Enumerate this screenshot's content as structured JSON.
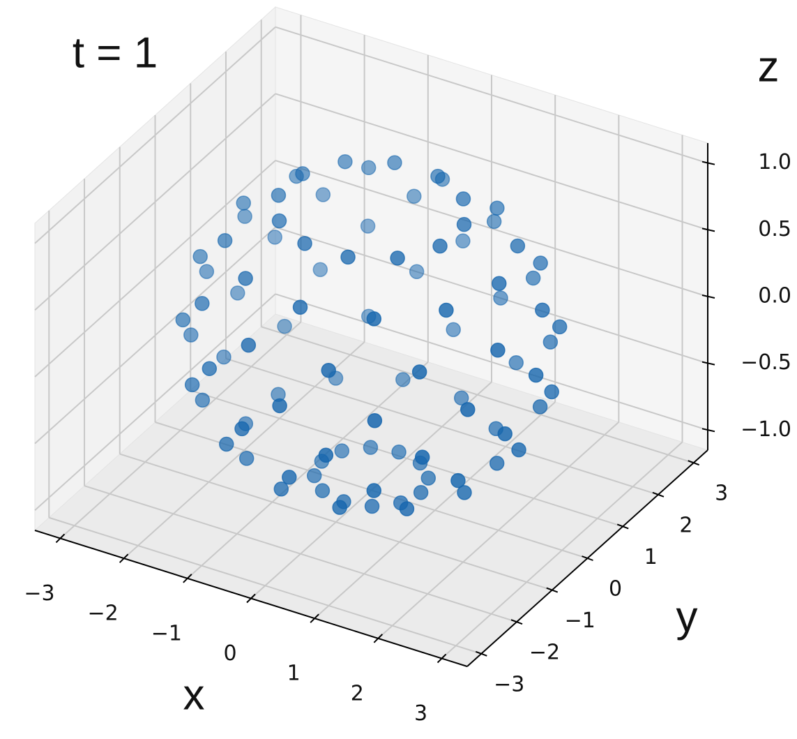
{
  "chart_data": {
    "type": "scatter3d",
    "title": "t = 1",
    "xlabel": "x",
    "ylabel": "y",
    "zlabel": "z",
    "color": "#1565ad",
    "depthshade": true,
    "grid": true,
    "xlim": [
      -3.4,
      3.4
    ],
    "ylim": [
      -3.4,
      3.4
    ],
    "zlim": [
      -1.15,
      1.15
    ],
    "xticks": [
      {
        "value": -3,
        "label": "−3"
      },
      {
        "value": -2,
        "label": "−2"
      },
      {
        "value": -1,
        "label": "−1"
      },
      0,
      1,
      2,
      3
    ],
    "yticks": [
      {
        "value": -3,
        "label": "−3"
      },
      {
        "value": -2,
        "label": "−2"
      },
      {
        "value": -1,
        "label": "−1"
      },
      0,
      1,
      2,
      3
    ],
    "zticks": [
      {
        "value": -1,
        "label": "−1.0"
      },
      {
        "value": -0.5,
        "label": "−0.5"
      },
      {
        "value": 0,
        "label": "0.0"
      },
      0.5,
      {
        "value": 1,
        "label": "1.0"
      }
    ],
    "x": [
      0.78,
      0.68,
      0.39,
      0,
      -0.39,
      -0.68,
      -0.78,
      -0.68,
      -0.39,
      0,
      0.39,
      0.68,
      1.72,
      1.26,
      0.46,
      -0.46,
      -1.26,
      -1.72,
      -1.72,
      -1.26,
      -0.46,
      0.46,
      1.26,
      1.72,
      2.32,
      2.01,
      1.16,
      0,
      -1.16,
      -2.01,
      -2.32,
      -2.01,
      -1.16,
      0,
      1.16,
      2.01,
      2.47,
      1.81,
      0.66,
      -0.66,
      -1.81,
      -2.47,
      -2.47,
      -1.81,
      -0.66,
      0.66,
      1.81,
      2.47,
      2.59,
      2.24,
      1.3,
      0,
      -1.3,
      -2.24,
      -2.59,
      -2.24,
      -1.3,
      0,
      1.3,
      2.24,
      2.34,
      1.71,
      0.63,
      -0.63,
      -1.71,
      -2.34,
      -2.34,
      -1.71,
      -0.63,
      0.63,
      1.71,
      2.34,
      2.01,
      1.74,
      1.01,
      0,
      -1.01,
      -1.74,
      -2.01,
      -1.74,
      -1.01,
      0,
      1.01,
      1.74,
      1.27,
      0.93,
      0.34,
      -0.34,
      -0.93,
      -1.27,
      -1.27,
      -0.93,
      -0.34,
      0.34,
      0.93,
      1.27
    ],
    "y": [
      0,
      0.39,
      0.68,
      0.78,
      0.68,
      0.39,
      0,
      -0.39,
      -0.68,
      -0.78,
      -0.68,
      -0.39,
      0.46,
      1.26,
      1.72,
      1.72,
      1.26,
      0.46,
      -0.46,
      -1.26,
      -1.72,
      -1.72,
      -1.26,
      -0.46,
      0,
      1.16,
      2.01,
      2.32,
      2.01,
      1.16,
      0,
      -1.16,
      -2.01,
      -2.32,
      -2.01,
      -1.16,
      0.66,
      1.81,
      2.47,
      2.47,
      1.81,
      0.66,
      -0.66,
      -1.81,
      -2.47,
      -2.47,
      -1.81,
      -0.66,
      0,
      1.3,
      2.24,
      2.59,
      2.24,
      1.3,
      0,
      -1.3,
      -2.24,
      -2.59,
      -2.24,
      -1.3,
      0.63,
      1.71,
      2.34,
      2.34,
      1.71,
      0.63,
      -0.63,
      -1.71,
      -2.34,
      -2.34,
      -1.71,
      -0.63,
      0,
      1.01,
      1.74,
      2.01,
      1.74,
      1.01,
      0,
      -1.01,
      -1.74,
      -2.01,
      -1.74,
      -1.01,
      0.34,
      0.93,
      1.27,
      1.27,
      0.93,
      0.34,
      -0.34,
      -0.93,
      -1.27,
      -1.27,
      -0.93,
      -0.34
    ],
    "z": [
      -1.05,
      -1.05,
      -1.05,
      -1.05,
      -1.05,
      -1.05,
      -1.05,
      -1.05,
      -1.05,
      -1.05,
      -1.05,
      -1.05,
      -0.8,
      -0.8,
      -0.8,
      -0.8,
      -0.8,
      -0.8,
      -0.8,
      -0.8,
      -0.8,
      -0.8,
      -0.8,
      -0.8,
      -0.5,
      -0.5,
      -0.5,
      -0.5,
      -0.5,
      -0.5,
      -0.5,
      -0.5,
      -0.5,
      -0.5,
      -0.5,
      -0.5,
      -0.2,
      -0.2,
      -0.2,
      -0.2,
      -0.2,
      -0.2,
      -0.2,
      -0.2,
      -0.2,
      -0.2,
      -0.2,
      -0.2,
      0.1,
      0.1,
      0.1,
      0.1,
      0.1,
      0.1,
      0.1,
      0.1,
      0.1,
      0.1,
      0.1,
      0.1,
      0.4,
      0.4,
      0.4,
      0.4,
      0.4,
      0.4,
      0.4,
      0.4,
      0.4,
      0.4,
      0.4,
      0.4,
      0.7,
      0.7,
      0.7,
      0.7,
      0.7,
      0.7,
      0.7,
      0.7,
      0.7,
      0.7,
      0.7,
      0.7,
      0.95,
      0.95,
      0.95,
      0.95,
      0.95,
      0.95,
      0.95,
      0.95,
      0.95,
      0.95,
      0.95,
      0.95
    ]
  }
}
